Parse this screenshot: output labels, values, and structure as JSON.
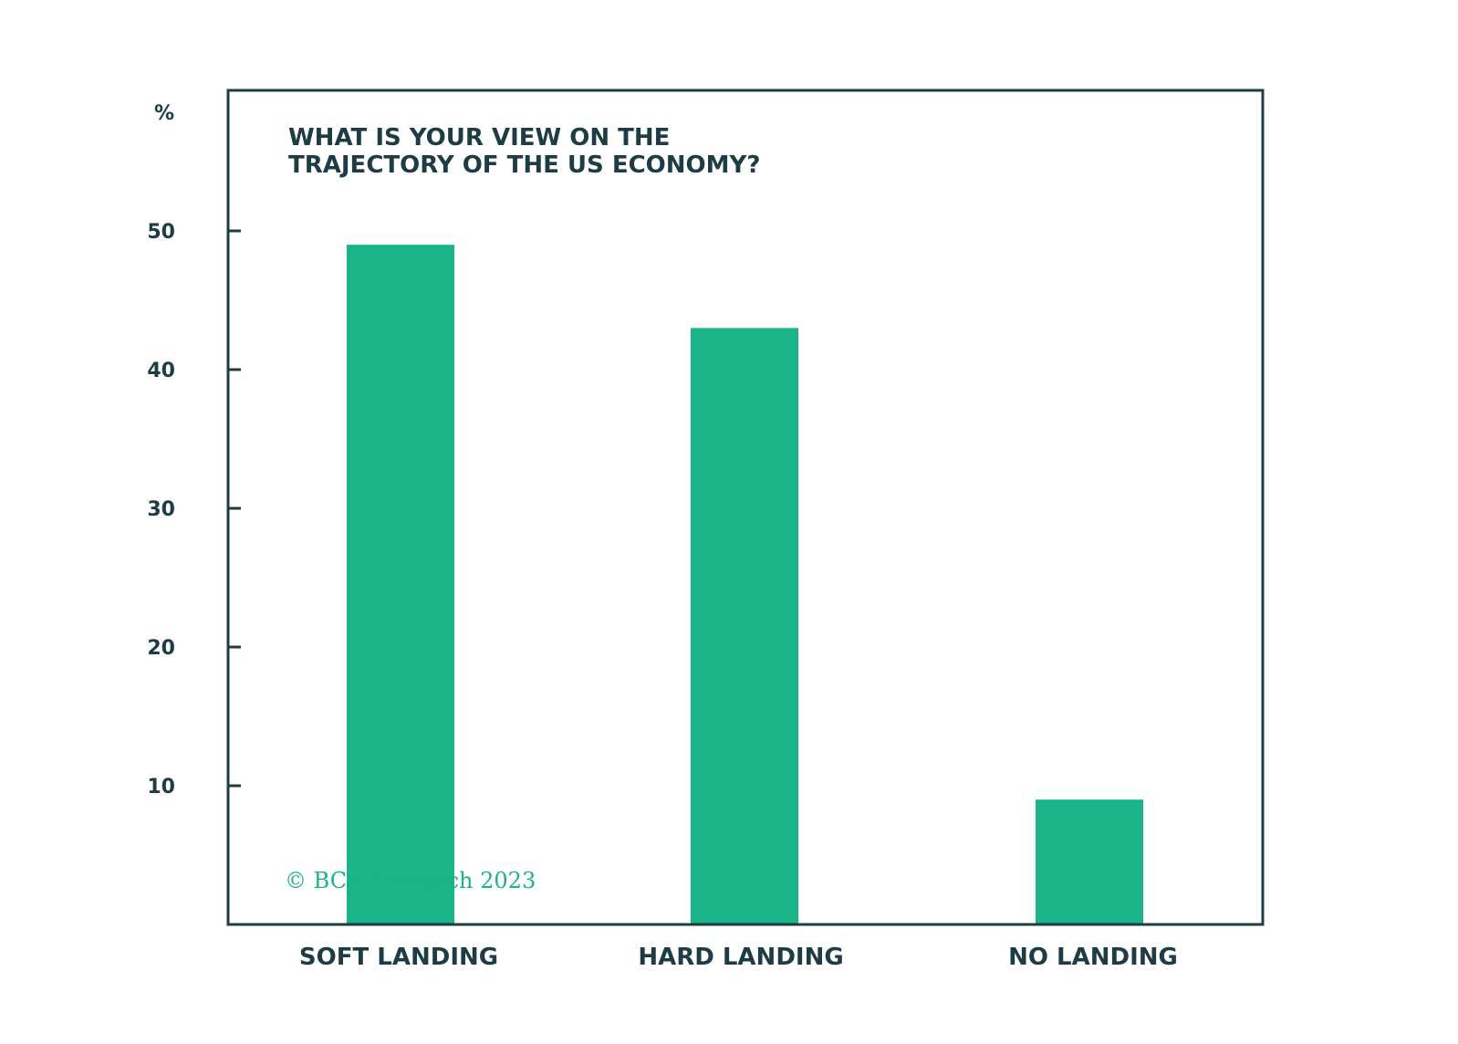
{
  "colors": {
    "bar": "#1bb388",
    "text": "#1d3c45",
    "axis": "#1d3c45",
    "watermark": "#1bb388",
    "background": "#ffffff"
  },
  "chart_data": {
    "type": "bar",
    "title": "WHAT IS YOUR VIEW ON THE TRAJECTORY OF THE US ECONOMY?",
    "title_lines": [
      "WHAT IS YOUR VIEW ON THE",
      "TRAJECTORY OF THE US ECONOMY?"
    ],
    "y_unit_label": "%",
    "categories": [
      "SOFT LANDING",
      "HARD LANDING",
      "NO LANDING"
    ],
    "values": [
      49,
      43,
      9
    ],
    "ylim": [
      0,
      60
    ],
    "yticks": [
      10,
      20,
      30,
      40,
      50
    ],
    "grid": false,
    "legend": "none",
    "watermark": "© BCA Research 2023"
  }
}
